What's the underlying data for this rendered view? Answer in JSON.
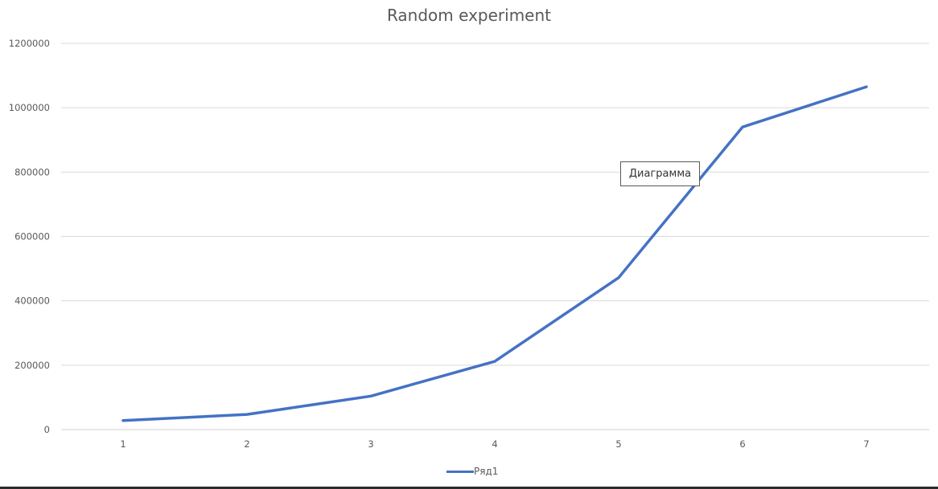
{
  "chart_data": {
    "type": "line",
    "title": "Random experiment",
    "xlabel": "",
    "ylabel": "",
    "categories": [
      "1",
      "2",
      "3",
      "4",
      "5",
      "6",
      "7"
    ],
    "yticks": [
      "0",
      "200000",
      "400000",
      "600000",
      "800000",
      "1000000",
      "1200000"
    ],
    "ylim": [
      0,
      1200000
    ],
    "grid": true,
    "legend_position": "bottom",
    "series": [
      {
        "name": "Ряд1",
        "color": "#4472c4",
        "values": [
          28000,
          47000,
          104000,
          212000,
          472000,
          940000,
          1065000
        ]
      }
    ],
    "annotation": "Диаграмма"
  }
}
